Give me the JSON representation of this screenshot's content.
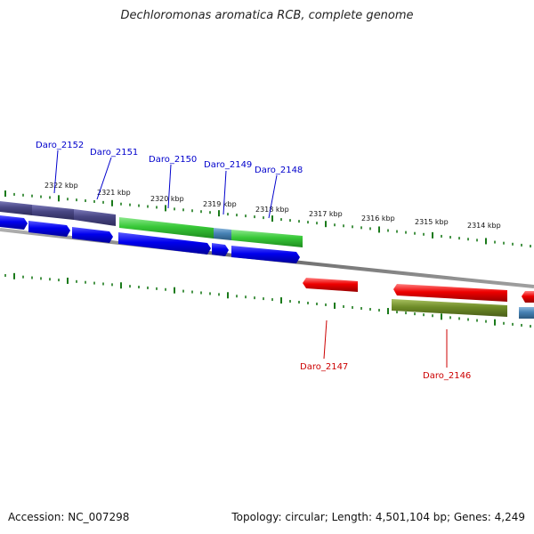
{
  "title": "Dechloromonas aromatica RCB, complete genome",
  "footer": {
    "accession": "Accession: NC_007298",
    "summary": "Topology: circular; Length: 4,501,104 bp; Genes: 4,249"
  },
  "colors": {
    "forward_gene": "#0000ee",
    "forward_dark": "#484684",
    "forward_rna": "#38c838",
    "reverse_gene": "#ee0000",
    "reverse_olive": "#6e8c28",
    "steelblue": "#4682b4",
    "tick": "#1a7a1a",
    "label_blue": "#0000cc",
    "label_red": "#cc0000",
    "backbone": "#777777"
  },
  "ticks": [
    "2322 kbp",
    "2321 kbp",
    "2320 kbp",
    "2319 kbp",
    "2318 kbp",
    "2317 kbp",
    "2316 kbp",
    "2315 kbp",
    "2314 kbp"
  ],
  "gene_labels": {
    "forward": [
      "Daro_2152",
      "Daro_2151",
      "Daro_2150",
      "Daro_2149",
      "Daro_2148"
    ],
    "reverse": [
      "Daro_2147",
      "Daro_2146"
    ]
  }
}
